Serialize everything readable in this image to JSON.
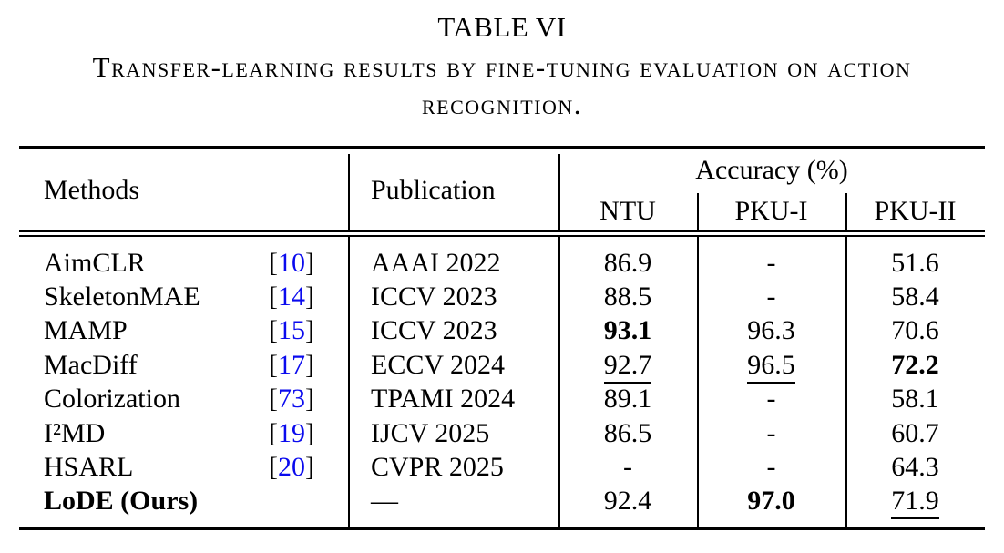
{
  "title": "TABLE VI",
  "caption": "Transfer-learning results by fine-tuning evaluation on action recognition.",
  "table": {
    "headers": {
      "methods": "Methods",
      "publication": "Publication",
      "accuracy_group": "Accuracy (%)",
      "sub_ntu": "NTU",
      "sub_pku1": "PKU-I",
      "sub_pku2": "PKU-II"
    },
    "citation_brackets": {
      "open": "[",
      "close": "]"
    },
    "colors": {
      "citation": "#0A0AEE",
      "text": "#000000"
    },
    "rows": [
      {
        "method": "AimCLR",
        "cite": "10",
        "publication": "AAAI 2022",
        "ntu": "86.9",
        "pku1": "-",
        "pku2": "51.6"
      },
      {
        "method": "SkeletonMAE",
        "cite": "14",
        "publication": "ICCV 2023",
        "ntu": "88.5",
        "pku1": "-",
        "pku2": "58.4"
      },
      {
        "method": "MAMP",
        "cite": "15",
        "publication": "ICCV 2023",
        "ntu": "93.1",
        "pku1": "96.3",
        "pku2": "70.6"
      },
      {
        "method": "MacDiff",
        "cite": "17",
        "publication": "ECCV 2024",
        "ntu": "92.7",
        "pku1": "96.5",
        "pku2": "72.2"
      },
      {
        "method": "Colorization",
        "cite": "73",
        "publication": "TPAMI 2024",
        "ntu": "89.1",
        "pku1": "-",
        "pku2": "58.1"
      },
      {
        "method": "I²MD",
        "cite": "19",
        "publication": "IJCV 2025",
        "ntu": "86.5",
        "pku1": "-",
        "pku2": "60.7"
      },
      {
        "method": "HSARL",
        "cite": "20",
        "publication": "CVPR 2025",
        "ntu": "-",
        "pku1": "-",
        "pku2": "64.3"
      },
      {
        "method": "LoDE (Ours)",
        "cite": "",
        "publication": "—",
        "ntu": "92.4",
        "pku1": "97.0",
        "pku2": "71.9"
      }
    ]
  }
}
